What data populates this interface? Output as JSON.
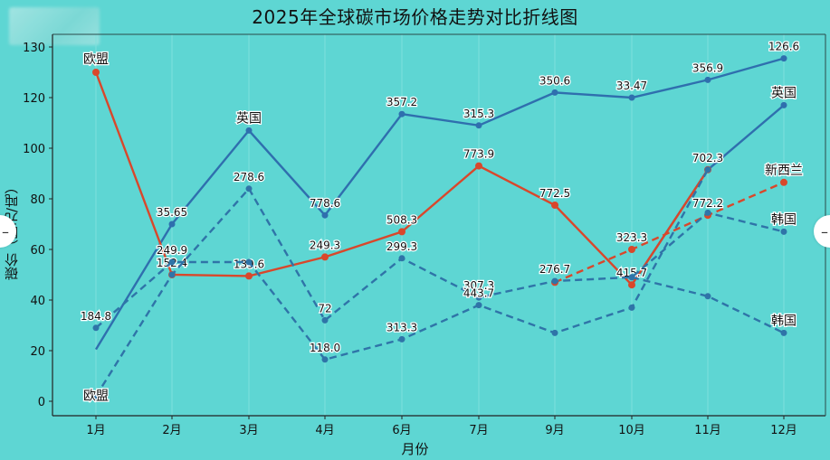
{
  "chart_data": {
    "type": "line",
    "title": "2025年全球碳市场价格走势对比折线图",
    "xlabel": "月份",
    "ylabel": "碳价（欧元/吨）",
    "categories": [
      "1月",
      "2月",
      "3月",
      "4月",
      "6月",
      "7月",
      "9月",
      "10月",
      "11月",
      "12月"
    ],
    "ylim": [
      -6,
      146
    ],
    "yticks": [
      0,
      20,
      40,
      60,
      80,
      100,
      120,
      130
    ],
    "ytick_labels": [
      "0",
      "20",
      "40",
      "60",
      "80",
      "100",
      "120",
      "130"
    ],
    "grid": true,
    "legend": "none (inline end labels)",
    "series": [
      {
        "name": "英国",
        "style": "solid",
        "color": "#2f6fae",
        "values": [
          20.5,
          70,
          107,
          73.5,
          113.5,
          109,
          122,
          120,
          127,
          135.5
        ],
        "point_labels": [
          "",
          "35.65",
          "英国",
          "778.6",
          "357.2",
          "315.3",
          "350.6",
          "33.47",
          "356.9",
          "126.6"
        ]
      },
      {
        "name": "英国(2)",
        "style": "solid",
        "color": "#2f6fae",
        "values": [
          null,
          null,
          null,
          null,
          null,
          null,
          null,
          46,
          91.5,
          117
        ],
        "point_labels": [
          "",
          "",
          "",
          "",
          "",
          "",
          "",
          "",
          "702.3",
          "英国"
        ]
      },
      {
        "name": "欧盟",
        "style": "solid",
        "color": "#d9472b",
        "values": [
          130,
          50,
          49.5,
          57,
          67,
          93,
          77.5,
          46,
          91.5,
          null
        ],
        "point_labels": [
          "欧盟",
          "152.4",
          "139.6",
          "249.3",
          "508.3",
          "773.9",
          "772.5",
          "415.7",
          "",
          ""
        ]
      },
      {
        "name": "新西兰",
        "style": "dashed",
        "color": "#d9472b",
        "values": [
          null,
          null,
          null,
          null,
          null,
          null,
          47,
          60,
          73.5,
          86.5
        ],
        "point_labels": [
          "",
          "",
          "",
          "",
          "",
          "",
          "",
          "323.3",
          "772.2",
          "新西兰"
        ]
      },
      {
        "name": "韩国",
        "style": "dashed",
        "color": "#2f74a8",
        "values": [
          2,
          50,
          84,
          32,
          56.5,
          41,
          47.5,
          49,
          74.5,
          67
        ],
        "point_labels": [
          "欧盟",
          "",
          "278.6",
          "72",
          "299.3",
          "307.3",
          "276.7",
          "",
          "",
          "韩国"
        ]
      },
      {
        "name": "韩国(2)",
        "style": "dashed",
        "color": "#2f74a8",
        "values": [
          29,
          55,
          55,
          16.5,
          24.5,
          38,
          27,
          37,
          91.5,
          null
        ],
        "point_labels": [
          "184.8",
          "249.9",
          "",
          "118.0",
          "313.3",
          "443.7",
          "",
          "",
          "",
          ""
        ]
      },
      {
        "name": "韩国(3)",
        "style": "dashed",
        "color": "#2f74a8",
        "values": [
          null,
          null,
          null,
          null,
          null,
          null,
          null,
          49,
          41.5,
          27
        ],
        "point_labels": [
          "",
          "",
          "",
          "",
          "",
          "",
          "",
          "",
          "",
          "韩国"
        ]
      }
    ]
  },
  "ui": {
    "prev_button_label": "←",
    "next_button_label": "→"
  }
}
